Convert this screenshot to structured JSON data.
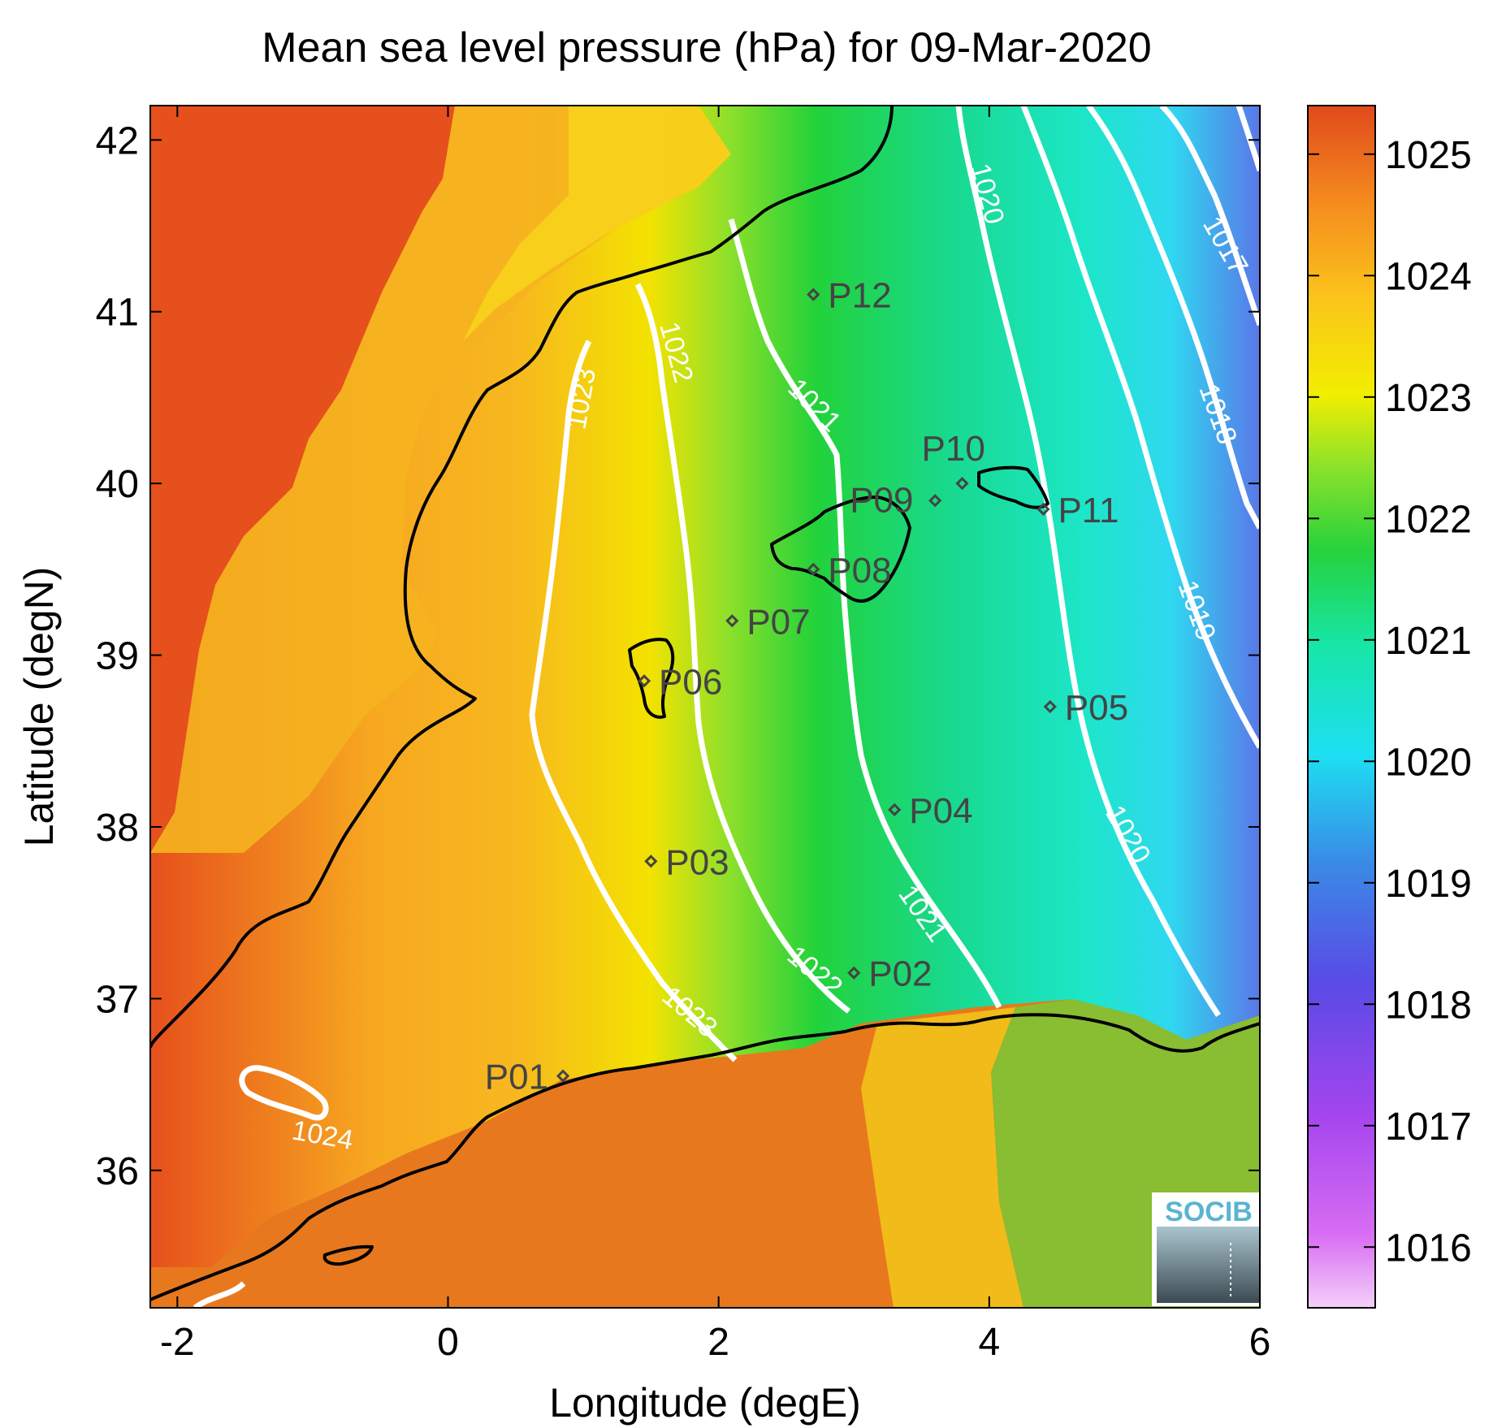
{
  "title": "Mean sea level pressure (hPa) for 09-Mar-2020",
  "xlabel": "Longitude (degE)",
  "ylabel": "Latitude (degN)",
  "x_ticks": [
    "-2",
    "0",
    "2",
    "4",
    "6"
  ],
  "y_ticks": [
    "36",
    "37",
    "38",
    "39",
    "40",
    "41",
    "42"
  ],
  "colorbar": {
    "ticks": [
      "1016",
      "1017",
      "1018",
      "1019",
      "1020",
      "1021",
      "1022",
      "1023",
      "1024",
      "1025"
    ],
    "colors": [
      "#e8a8f5",
      "#c24ff0",
      "#7a3de6",
      "#3e72e8",
      "#1de0f0",
      "#18e6a8",
      "#22d23a",
      "#b9ec1c",
      "#fbe100",
      "#fbb21f",
      "#e84c1c"
    ]
  },
  "logo": "SOCIB",
  "points": [
    {
      "name": "P01",
      "lon": 0.85,
      "lat": 36.55
    },
    {
      "name": "P02",
      "lon": 3.0,
      "lat": 37.15
    },
    {
      "name": "P03",
      "lon": 1.5,
      "lat": 37.8
    },
    {
      "name": "P04",
      "lon": 3.3,
      "lat": 38.1
    },
    {
      "name": "P05",
      "lon": 4.45,
      "lat": 38.7
    },
    {
      "name": "P06",
      "lon": 1.45,
      "lat": 38.85
    },
    {
      "name": "P07",
      "lon": 2.1,
      "lat": 39.2
    },
    {
      "name": "P08",
      "lon": 2.7,
      "lat": 39.5
    },
    {
      "name": "P09",
      "lon": 3.6,
      "lat": 39.9
    },
    {
      "name": "P10",
      "lon": 3.8,
      "lat": 40.0
    },
    {
      "name": "P11",
      "lon": 4.4,
      "lat": 39.85
    },
    {
      "name": "P12",
      "lon": 2.7,
      "lat": 41.1
    }
  ],
  "contour_labels": [
    "1024",
    "1023",
    "1023",
    "1022",
    "1022",
    "1021",
    "1021",
    "1020",
    "1020",
    "1019",
    "1018",
    "1017"
  ]
}
